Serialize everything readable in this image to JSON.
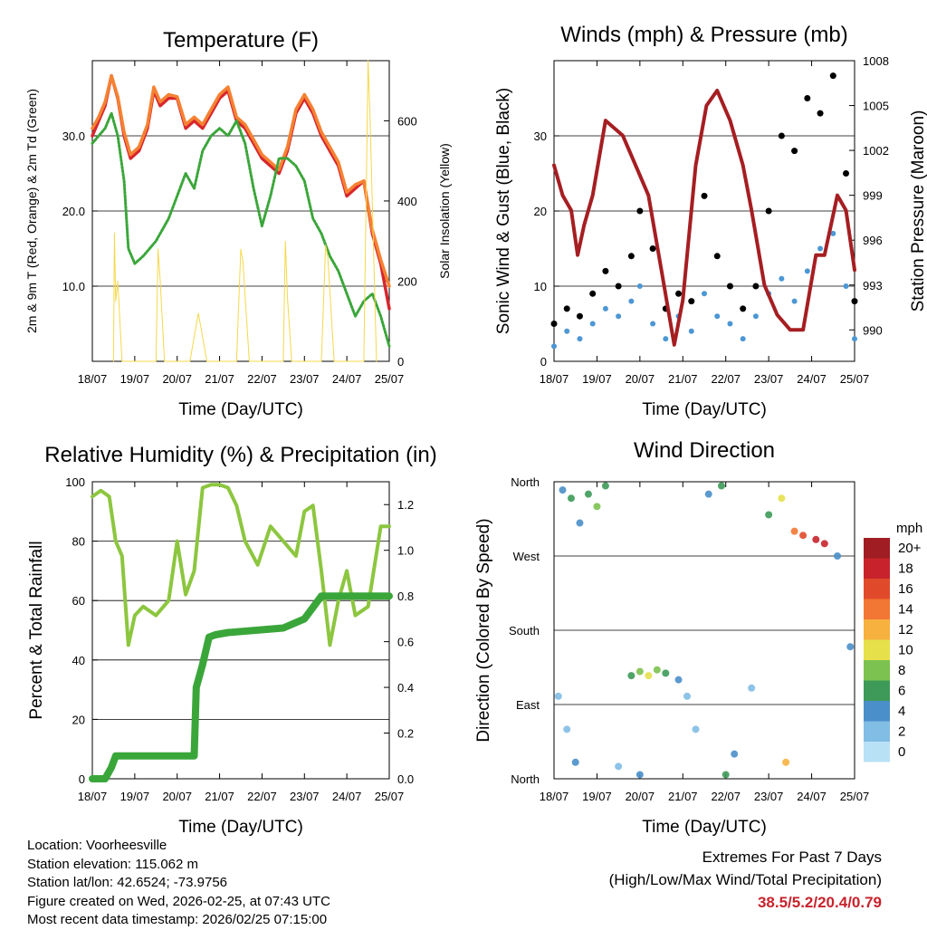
{
  "chart_data": [
    {
      "type": "line",
      "title": "Temperature (F)",
      "xlabel": "Time (Day/UTC)",
      "ylabel": "2m & 9m T (Red, Orange) & 2m Td (Green)",
      "y2label": "Solar Insolation (Yellow)",
      "x_ticks": [
        "18/07",
        "19/07",
        "20/07",
        "21/07",
        "22/07",
        "23/07",
        "24/07",
        "25/07"
      ],
      "ylim": [
        0,
        40
      ],
      "y_ticks": [
        10,
        20,
        30
      ],
      "y_tick_labels": [
        "10.0",
        "20.0",
        "30.0"
      ],
      "y2lim": [
        0,
        750
      ],
      "y2_ticks": [
        0,
        200,
        400,
        600
      ],
      "y2_tick_labels": [
        "0",
        "200",
        "400",
        "600"
      ],
      "colors": {
        "t2m": "#d7262d",
        "t9m": "#f58232",
        "td": "#3aa63a",
        "solar": "#f5d84a"
      },
      "series": [
        {
          "name": "2m T",
          "x": [
            0,
            0.15,
            0.3,
            0.45,
            0.6,
            0.75,
            0.9,
            1.1,
            1.3,
            1.45,
            1.6,
            1.8,
            2.0,
            2.2,
            2.4,
            2.6,
            2.8,
            3.0,
            3.2,
            3.4,
            3.6,
            3.8,
            4.0,
            4.2,
            4.4,
            4.6,
            4.8,
            5.0,
            5.2,
            5.4,
            5.6,
            5.8,
            6.0,
            6.2,
            6.4,
            6.6,
            6.8,
            7.0
          ],
          "values": [
            30,
            32,
            34,
            38,
            35,
            30,
            27,
            28,
            31,
            36,
            34,
            35,
            35,
            31,
            32,
            31,
            33,
            35,
            36,
            32,
            31,
            29,
            27,
            26,
            25,
            28,
            33,
            35,
            33,
            30,
            28,
            26,
            22,
            23,
            24,
            17,
            13,
            7
          ]
        },
        {
          "name": "9m T",
          "x": [
            0,
            0.15,
            0.3,
            0.45,
            0.6,
            0.75,
            0.9,
            1.1,
            1.3,
            1.45,
            1.6,
            1.8,
            2.0,
            2.2,
            2.4,
            2.6,
            2.8,
            3.0,
            3.2,
            3.4,
            3.6,
            3.8,
            4.0,
            4.2,
            4.4,
            4.6,
            4.8,
            5.0,
            5.2,
            5.4,
            5.6,
            5.8,
            6.0,
            6.2,
            6.4,
            6.6,
            6.8,
            7.0
          ],
          "values": [
            31,
            32.5,
            34.5,
            38,
            35.2,
            30.5,
            27.5,
            28.5,
            31.5,
            36.5,
            34.5,
            35.5,
            35.2,
            31.5,
            32.5,
            31.5,
            33.5,
            35.5,
            36.5,
            32.5,
            31.5,
            29.5,
            27.5,
            26.5,
            25.5,
            28.5,
            33.5,
            35.5,
            33.5,
            30.5,
            28.5,
            26.5,
            22.5,
            23.5,
            24,
            17.5,
            13.5,
            10
          ]
        },
        {
          "name": "2m Td",
          "x": [
            0,
            0.3,
            0.45,
            0.6,
            0.75,
            0.85,
            1.0,
            1.2,
            1.5,
            1.8,
            2.0,
            2.2,
            2.4,
            2.6,
            2.8,
            3.0,
            3.2,
            3.4,
            3.6,
            3.8,
            4.0,
            4.2,
            4.4,
            4.6,
            4.8,
            5.0,
            5.2,
            5.4,
            5.6,
            5.8,
            6.0,
            6.2,
            6.4,
            6.6,
            6.8,
            7.0
          ],
          "values": [
            29,
            31,
            33,
            30,
            24,
            15,
            13,
            14,
            16,
            19,
            22,
            25,
            23,
            28,
            30,
            31,
            30,
            32,
            29,
            23,
            18,
            22,
            27,
            27,
            26,
            24,
            19,
            17,
            14,
            12,
            9,
            6,
            8,
            9,
            6,
            2
          ]
        },
        {
          "name": "Solar Insolation",
          "axis": "y2",
          "x": [
            0.5,
            0.52,
            0.55,
            0.6,
            0.7,
            1.5,
            1.55,
            1.6,
            1.7,
            2.3,
            2.5,
            2.55,
            2.7,
            3.4,
            3.5,
            3.55,
            3.7,
            4.5,
            4.55,
            4.6,
            4.7,
            5.4,
            5.5,
            5.55,
            5.7,
            6.4,
            6.5,
            6.55,
            6.7
          ],
          "values": [
            0,
            320,
            150,
            200,
            0,
            0,
            280,
            200,
            0,
            0,
            120,
            90,
            0,
            0,
            280,
            250,
            0,
            0,
            300,
            160,
            0,
            0,
            290,
            260,
            0,
            0,
            750,
            600,
            0
          ]
        }
      ]
    },
    {
      "type": "scatter",
      "title": "Winds (mph) & Pressure (mb)",
      "xlabel": "Time (Day/UTC)",
      "ylabel": "Sonic Wind & Gust (Blue, Black)",
      "y2label": "Station Pressure (Maroon)",
      "x_ticks": [
        "18/07",
        "19/07",
        "20/07",
        "21/07",
        "22/07",
        "23/07",
        "24/07",
        "25/07"
      ],
      "ylim": [
        0,
        40
      ],
      "y_ticks": [
        0,
        10,
        20,
        30
      ],
      "y2lim": [
        987.9,
        1008
      ],
      "y2_ticks": [
        990,
        993,
        996,
        999,
        1002,
        1005,
        1008
      ],
      "colors": {
        "wind": "#4c97d4",
        "gust": "#000000",
        "pressure": "#a51e22"
      },
      "series": [
        {
          "name": "Wind",
          "x": [
            0,
            0.3,
            0.6,
            0.9,
            1.2,
            1.5,
            1.8,
            2.0,
            2.3,
            2.6,
            2.9,
            3.2,
            3.5,
            3.8,
            4.1,
            4.4,
            4.7,
            5.0,
            5.3,
            5.6,
            5.9,
            6.2,
            6.5,
            6.8,
            7.0
          ],
          "values": [
            2,
            4,
            3,
            5,
            7,
            6,
            8,
            10,
            5,
            3,
            6,
            4,
            9,
            6,
            5,
            3,
            6,
            9,
            11,
            8,
            12,
            15,
            17,
            10,
            3
          ]
        },
        {
          "name": "Gust",
          "x": [
            0,
            0.3,
            0.6,
            0.9,
            1.2,
            1.5,
            1.8,
            2.0,
            2.3,
            2.6,
            2.9,
            3.2,
            3.5,
            3.8,
            4.1,
            4.4,
            4.7,
            5.0,
            5.3,
            5.6,
            5.9,
            6.2,
            6.5,
            6.8,
            7.0
          ],
          "values": [
            5,
            7,
            6,
            9,
            12,
            10,
            14,
            20,
            15,
            7,
            9,
            8,
            22,
            14,
            10,
            7,
            10,
            20,
            30,
            28,
            35,
            33,
            38,
            25,
            8
          ]
        },
        {
          "name": "Station Pressure",
          "axis": "y2",
          "x": [
            0,
            0.2,
            0.4,
            0.55,
            0.7,
            0.9,
            1.2,
            1.6,
            1.9,
            2.2,
            2.5,
            2.8,
            3.0,
            3.3,
            3.55,
            3.8,
            4.1,
            4.4,
            4.6,
            4.9,
            5.2,
            5.5,
            5.8,
            6.1,
            6.3,
            6.6,
            6.8,
            7.0
          ],
          "values": [
            1001,
            999,
            998,
            995,
            997,
            999,
            1004,
            1003,
            1001,
            999,
            994,
            989,
            992,
            1001,
            1005,
            1006,
            1004,
            1001,
            998,
            993,
            991,
            990,
            990,
            995,
            995,
            999,
            998,
            994
          ]
        }
      ]
    },
    {
      "type": "line",
      "title": "Relative Humidity (%) & Precipitation (in)",
      "xlabel": "Time (Day/UTC)",
      "ylabel": "Percent & Total Rainfall",
      "x_ticks": [
        "18/07",
        "19/07",
        "20/07",
        "21/07",
        "22/07",
        "23/07",
        "24/07",
        "25/07"
      ],
      "ylim": [
        0,
        100
      ],
      "y_ticks": [
        0,
        20,
        40,
        60,
        80,
        100
      ],
      "y2lim": [
        0,
        1.3
      ],
      "y2_ticks": [
        0,
        0.2,
        0.4,
        0.6,
        0.8,
        1.0,
        1.2
      ],
      "y2_tick_labels": [
        "0.0",
        "0.2",
        "0.4",
        "0.6",
        "0.8",
        "1.0",
        "1.2"
      ],
      "colors": {
        "rh": "#8cc63f",
        "precip": "#3aa63a"
      },
      "series": [
        {
          "name": "Relative Humidity",
          "x": [
            0,
            0.2,
            0.4,
            0.55,
            0.7,
            0.85,
            1.0,
            1.2,
            1.5,
            1.8,
            2.0,
            2.2,
            2.4,
            2.6,
            2.8,
            3.0,
            3.2,
            3.4,
            3.6,
            3.9,
            4.2,
            4.5,
            4.8,
            5.0,
            5.2,
            5.4,
            5.6,
            5.8,
            6.0,
            6.2,
            6.5,
            6.8,
            7.0
          ],
          "values": [
            95,
            97,
            95,
            80,
            75,
            45,
            55,
            58,
            55,
            60,
            80,
            62,
            70,
            98,
            99,
            99,
            98,
            92,
            80,
            72,
            85,
            80,
            75,
            90,
            92,
            70,
            45,
            60,
            70,
            55,
            58,
            85,
            85
          ]
        },
        {
          "name": "Total Precipitation",
          "axis": "y2",
          "x": [
            0,
            0.3,
            0.45,
            0.55,
            0.7,
            2.0,
            2.4,
            2.45,
            2.6,
            2.75,
            2.9,
            3.2,
            4.5,
            5.0,
            5.2,
            5.4,
            5.5,
            6.0,
            7.0
          ],
          "values": [
            0,
            0,
            0.05,
            0.1,
            0.1,
            0.1,
            0.1,
            0.4,
            0.5,
            0.62,
            0.63,
            0.64,
            0.66,
            0.7,
            0.75,
            0.8,
            0.8,
            0.8,
            0.8
          ]
        }
      ]
    },
    {
      "type": "scatter",
      "title": "Wind Direction",
      "xlabel": "Time (Day/UTC)",
      "ylabel": "Direction (Colored By Speed)",
      "x_ticks": [
        "18/07",
        "19/07",
        "20/07",
        "21/07",
        "22/07",
        "23/07",
        "24/07",
        "25/07"
      ],
      "y_ticks": [
        "North",
        "East",
        "South",
        "West",
        "North"
      ],
      "y_tick_values": [
        0,
        90,
        180,
        270,
        360
      ],
      "ylim": [
        0,
        360
      ],
      "colorbar": {
        "title": "mph",
        "labels": [
          "0",
          "2",
          "4",
          "6",
          "8",
          "10",
          "12",
          "14",
          "16",
          "18",
          "20+"
        ],
        "colors": [
          "#b8e1f6",
          "#82bde6",
          "#4a8fc9",
          "#3d9a58",
          "#7cc250",
          "#e6e04b",
          "#f7b13f",
          "#f27734",
          "#e04a2a",
          "#c8232c",
          "#a01d23"
        ]
      },
      "points": [
        {
          "x": 0.2,
          "dir": 350,
          "speed": 3
        },
        {
          "x": 0.4,
          "dir": 340,
          "speed": 6
        },
        {
          "x": 0.6,
          "dir": 310,
          "speed": 4
        },
        {
          "x": 0.8,
          "dir": 345,
          "speed": 5
        },
        {
          "x": 1.0,
          "dir": 330,
          "speed": 7
        },
        {
          "x": 1.2,
          "dir": 355,
          "speed": 5
        },
        {
          "x": 0.1,
          "dir": 100,
          "speed": 2
        },
        {
          "x": 0.3,
          "dir": 60,
          "speed": 1
        },
        {
          "x": 0.5,
          "dir": 20,
          "speed": 3
        },
        {
          "x": 1.5,
          "dir": 15,
          "speed": 2
        },
        {
          "x": 1.8,
          "dir": 125,
          "speed": 5
        },
        {
          "x": 2.0,
          "dir": 130,
          "speed": 7
        },
        {
          "x": 2.2,
          "dir": 125,
          "speed": 9
        },
        {
          "x": 2.4,
          "dir": 132,
          "speed": 8
        },
        {
          "x": 2.6,
          "dir": 128,
          "speed": 6
        },
        {
          "x": 2.9,
          "dir": 120,
          "speed": 3
        },
        {
          "x": 3.1,
          "dir": 100,
          "speed": 2
        },
        {
          "x": 3.3,
          "dir": 60,
          "speed": 1
        },
        {
          "x": 3.6,
          "dir": 345,
          "speed": 4
        },
        {
          "x": 3.9,
          "dir": 355,
          "speed": 6
        },
        {
          "x": 4.2,
          "dir": 30,
          "speed": 3
        },
        {
          "x": 4.6,
          "dir": 110,
          "speed": 2
        },
        {
          "x": 5.0,
          "dir": 320,
          "speed": 6
        },
        {
          "x": 5.3,
          "dir": 340,
          "speed": 9
        },
        {
          "x": 5.6,
          "dir": 300,
          "speed": 14
        },
        {
          "x": 5.8,
          "dir": 295,
          "speed": 16
        },
        {
          "x": 6.1,
          "dir": 290,
          "speed": 18
        },
        {
          "x": 6.3,
          "dir": 285,
          "speed": 17
        },
        {
          "x": 6.6,
          "dir": 270,
          "speed": 3
        },
        {
          "x": 6.9,
          "dir": 160,
          "speed": 4
        },
        {
          "x": 5.4,
          "dir": 20,
          "speed": 12
        },
        {
          "x": 2.0,
          "dir": 5,
          "speed": 4
        },
        {
          "x": 4.0,
          "dir": 5,
          "speed": 6
        }
      ]
    }
  ],
  "footer": {
    "location": "Location: Voorheesville",
    "elevation": "Station elevation: 115.062 m",
    "latlon": "Station lat/lon: 42.6524; -73.9756",
    "created": "Figure created on Wed, 2026-02-25, at 07:43 UTC",
    "recent": "Most recent data timestamp: 2026/02/25 07:15:00"
  },
  "extremes": {
    "title": "Extremes For Past 7 Days",
    "subtitle": "(High/Low/Max Wind/Total Precipitation)",
    "values": "38.5/5.2/20.4/0.79"
  }
}
